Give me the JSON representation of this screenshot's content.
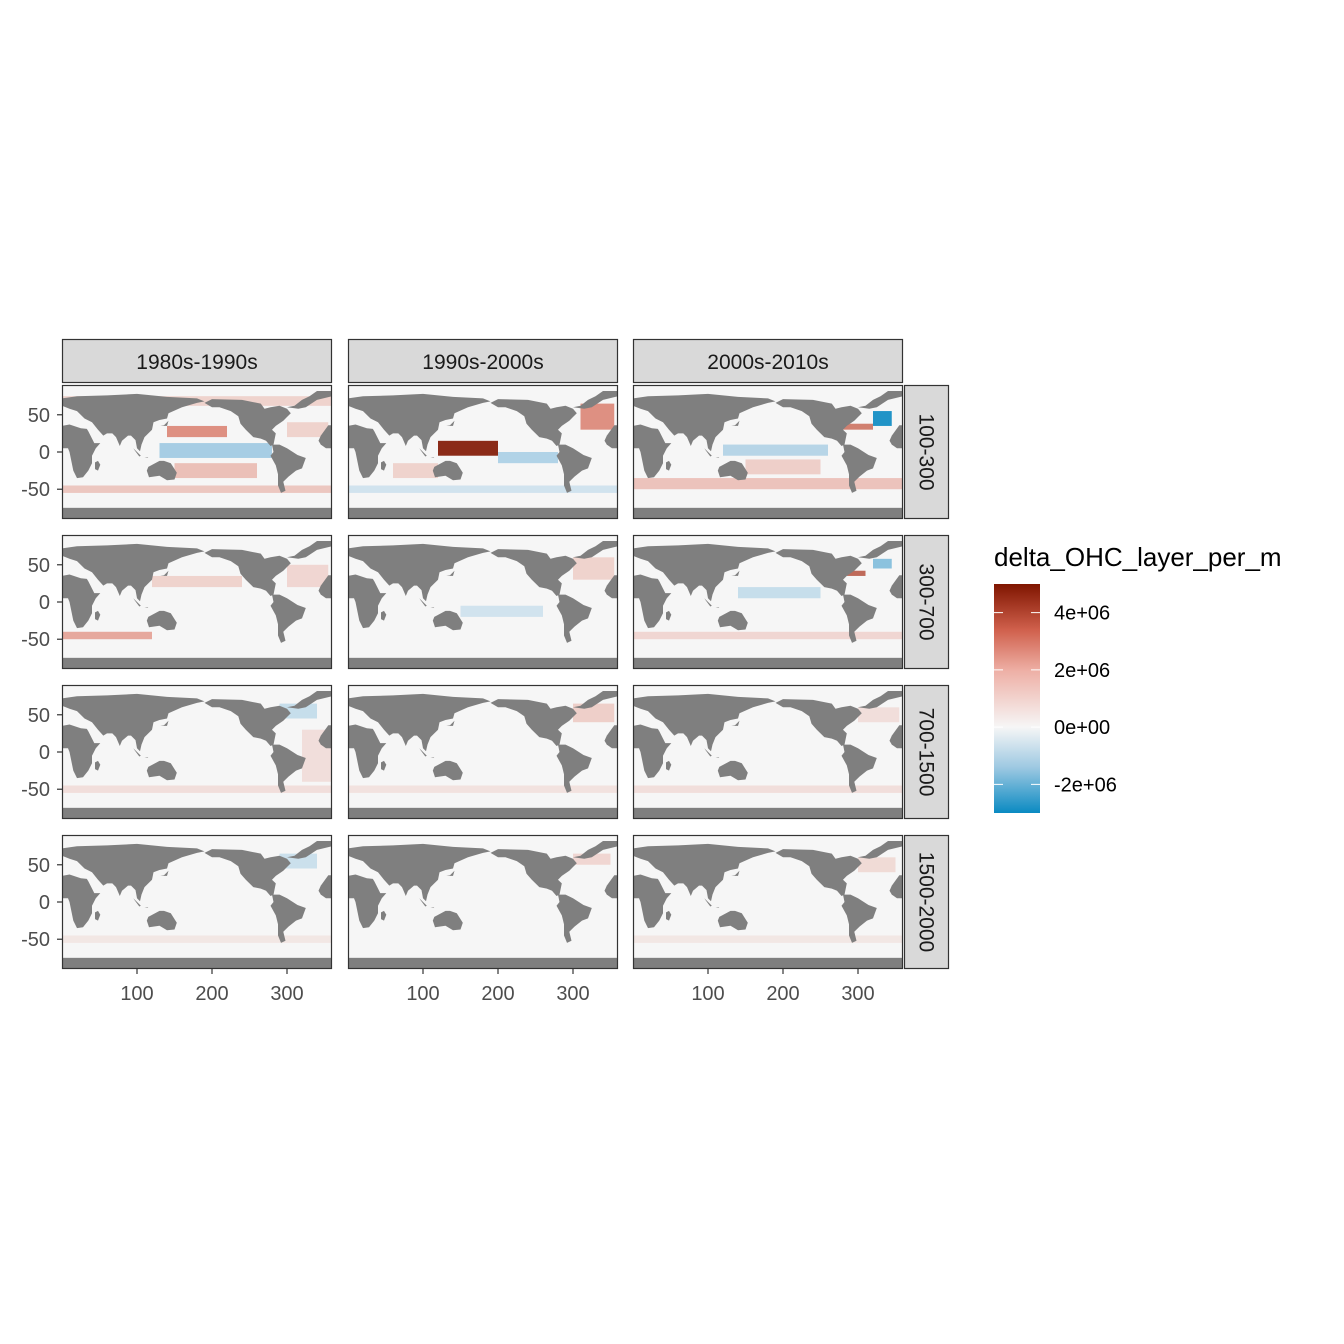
{
  "chart_data": {
    "type": "heatmap",
    "layout": "facet_grid",
    "columns": [
      "1980s-1990s",
      "1990s-2000s",
      "2000s-2010s"
    ],
    "rows": [
      "100-300",
      "300-700",
      "700-1500",
      "1500-2000"
    ],
    "x_ticks": [
      100,
      200,
      300
    ],
    "y_ticks": [
      50,
      0,
      -50
    ],
    "xlim": [
      0,
      360
    ],
    "ylim": [
      -90,
      90
    ],
    "grid": false,
    "land_color": "#7f7f7f",
    "ocean_color": "#f6f6f6",
    "strip_fill": "#d9d9d9",
    "legend": {
      "title": "delta_OHC_layer_per_m",
      "position": "right",
      "labels": [
        "4e+06",
        "2e+06",
        "0e+00",
        "-2e+06"
      ],
      "label_values": [
        4000000,
        2000000,
        0,
        -2000000
      ],
      "range": [
        -3000000,
        5000000
      ],
      "colors": {
        "neg_max": "#0a8ac2",
        "neg_mid": "#9ec9e2",
        "zero": "#f6f6f6",
        "pos_mid": "#e08a7a",
        "pos_max": "#7f1500"
      }
    },
    "features": [
      {
        "col": 0,
        "row": 0,
        "lon": [
          140,
          220
        ],
        "lat": [
          20,
          35
        ],
        "value": 2600000
      },
      {
        "col": 0,
        "row": 0,
        "lon": [
          130,
          280
        ],
        "lat": [
          -8,
          12
        ],
        "value": -1500000
      },
      {
        "col": 0,
        "row": 0,
        "lon": [
          150,
          260
        ],
        "lat": [
          -35,
          -15
        ],
        "value": 1400000
      },
      {
        "col": 0,
        "row": 0,
        "lon": [
          0,
          360
        ],
        "lat": [
          -55,
          -45
        ],
        "value": 1200000
      },
      {
        "col": 0,
        "row": 0,
        "lon": [
          300,
          355
        ],
        "lat": [
          20,
          40
        ],
        "value": 900000
      },
      {
        "col": 0,
        "row": 0,
        "lon": [
          0,
          360
        ],
        "lat": [
          62,
          75
        ],
        "value": 900000
      },
      {
        "col": 1,
        "row": 0,
        "lon": [
          120,
          200
        ],
        "lat": [
          -5,
          15
        ],
        "value": 5000000
      },
      {
        "col": 1,
        "row": 0,
        "lon": [
          200,
          280
        ],
        "lat": [
          -15,
          0
        ],
        "value": -1300000
      },
      {
        "col": 1,
        "row": 0,
        "lon": [
          310,
          355
        ],
        "lat": [
          30,
          65
        ],
        "value": 2600000
      },
      {
        "col": 1,
        "row": 0,
        "lon": [
          0,
          360
        ],
        "lat": [
          -55,
          -45
        ],
        "value": -700000
      },
      {
        "col": 1,
        "row": 0,
        "lon": [
          60,
          120
        ],
        "lat": [
          -35,
          -15
        ],
        "value": 900000
      },
      {
        "col": 2,
        "row": 0,
        "lon": [
          120,
          260
        ],
        "lat": [
          -5,
          10
        ],
        "value": -1200000
      },
      {
        "col": 2,
        "row": 0,
        "lon": [
          320,
          345
        ],
        "lat": [
          35,
          55
        ],
        "value": -3000000
      },
      {
        "col": 2,
        "row": 0,
        "lon": [
          280,
          320
        ],
        "lat": [
          30,
          38
        ],
        "value": 3000000
      },
      {
        "col": 2,
        "row": 0,
        "lon": [
          0,
          360
        ],
        "lat": [
          -50,
          -35
        ],
        "value": 1300000
      },
      {
        "col": 2,
        "row": 0,
        "lon": [
          150,
          250
        ],
        "lat": [
          -30,
          -10
        ],
        "value": 1000000
      },
      {
        "col": 0,
        "row": 1,
        "lon": [
          120,
          240
        ],
        "lat": [
          20,
          35
        ],
        "value": 900000
      },
      {
        "col": 0,
        "row": 1,
        "lon": [
          0,
          120
        ],
        "lat": [
          -50,
          -40
        ],
        "value": 2000000
      },
      {
        "col": 0,
        "row": 1,
        "lon": [
          300,
          355
        ],
        "lat": [
          20,
          50
        ],
        "value": 800000
      },
      {
        "col": 1,
        "row": 1,
        "lon": [
          150,
          260
        ],
        "lat": [
          -20,
          -5
        ],
        "value": -700000
      },
      {
        "col": 1,
        "row": 1,
        "lon": [
          300,
          355
        ],
        "lat": [
          30,
          60
        ],
        "value": 900000
      },
      {
        "col": 2,
        "row": 1,
        "lon": [
          140,
          250
        ],
        "lat": [
          5,
          20
        ],
        "value": -900000
      },
      {
        "col": 2,
        "row": 1,
        "lon": [
          285,
          310
        ],
        "lat": [
          35,
          42
        ],
        "value": 3500000
      },
      {
        "col": 2,
        "row": 1,
        "lon": [
          320,
          345
        ],
        "lat": [
          45,
          58
        ],
        "value": -1800000
      },
      {
        "col": 2,
        "row": 1,
        "lon": [
          0,
          360
        ],
        "lat": [
          -50,
          -40
        ],
        "value": 800000
      },
      {
        "col": 0,
        "row": 2,
        "lon": [
          290,
          340
        ],
        "lat": [
          45,
          65
        ],
        "value": -900000
      },
      {
        "col": 0,
        "row": 2,
        "lon": [
          0,
          360
        ],
        "lat": [
          -55,
          -45
        ],
        "value": 600000
      },
      {
        "col": 0,
        "row": 2,
        "lon": [
          320,
          360
        ],
        "lat": [
          -40,
          30
        ],
        "value": 600000
      },
      {
        "col": 1,
        "row": 2,
        "lon": [
          300,
          355
        ],
        "lat": [
          40,
          65
        ],
        "value": 1000000
      },
      {
        "col": 1,
        "row": 2,
        "lon": [
          0,
          360
        ],
        "lat": [
          -55,
          -45
        ],
        "value": 500000
      },
      {
        "col": 2,
        "row": 2,
        "lon": [
          300,
          355
        ],
        "lat": [
          40,
          60
        ],
        "value": 600000
      },
      {
        "col": 2,
        "row": 2,
        "lon": [
          0,
          360
        ],
        "lat": [
          -55,
          -45
        ],
        "value": 600000
      },
      {
        "col": 0,
        "row": 3,
        "lon": [
          290,
          340
        ],
        "lat": [
          45,
          65
        ],
        "value": -800000
      },
      {
        "col": 0,
        "row": 3,
        "lon": [
          0,
          360
        ],
        "lat": [
          -55,
          -45
        ],
        "value": 400000
      },
      {
        "col": 1,
        "row": 3,
        "lon": [
          300,
          350
        ],
        "lat": [
          50,
          65
        ],
        "value": 800000
      },
      {
        "col": 2,
        "row": 3,
        "lon": [
          300,
          350
        ],
        "lat": [
          40,
          60
        ],
        "value": 700000
      },
      {
        "col": 2,
        "row": 3,
        "lon": [
          0,
          360
        ],
        "lat": [
          -55,
          -45
        ],
        "value": 400000
      }
    ]
  }
}
